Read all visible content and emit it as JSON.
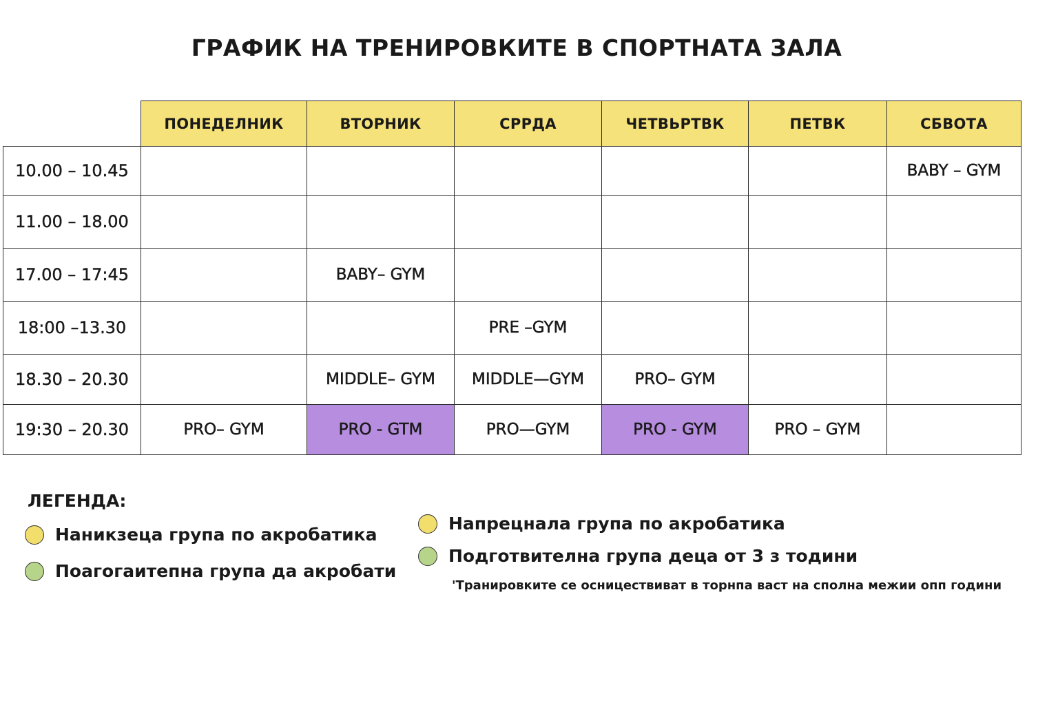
{
  "title": "ГРАФИК НА ТРЕНИРОВКИТЕ В СПОРТНАТА ЗАЛА",
  "schedule": {
    "days": [
      "ПОНЕДЕЛНИК",
      "ВТОРНИК",
      "СРРДА",
      "ЧЕТВЬРТВК",
      "ПЕТВК",
      "СБВОТА"
    ],
    "rows": [
      {
        "time": "10.00 – 10.45",
        "cells": [
          "",
          "",
          "",
          "",
          "",
          "BABY – GYM"
        ]
      },
      {
        "time": "11.00 – 18.00",
        "cells": [
          "",
          "",
          "",
          "",
          "",
          ""
        ]
      },
      {
        "time": "17.00 – 17:45",
        "cells": [
          "",
          "BABY– GYM",
          "",
          "",
          "",
          ""
        ]
      },
      {
        "time": "18:00 –13.30",
        "cells": [
          "",
          "",
          "PRE –GYM",
          "",
          "",
          ""
        ]
      },
      {
        "time": "18.30 – 20.30",
        "cells": [
          "",
          "MIDDLE– GYM",
          "MIDDLE—GYM",
          "PRO– GYM",
          "",
          ""
        ]
      },
      {
        "time": "19:30 – 20.30",
        "cells": [
          "PRO– GYM",
          "PRO - GTM",
          "PRO—GYM",
          "PRO - GYM",
          "PRO – GYM",
          ""
        ]
      }
    ],
    "highlighted": [
      {
        "row": 5,
        "col": 1
      },
      {
        "row": 5,
        "col": 3
      }
    ],
    "colors": {
      "header": "#f6e27a",
      "highlight": "#b68ddf",
      "border": "#2b2b2b"
    }
  },
  "legend": {
    "title": "ЛЕГЕНДА:",
    "items": [
      {
        "label": "Наникзеца група по акробатика",
        "color": "#f2de6c"
      },
      {
        "label": "Поагогаитепна група да акробати",
        "color": "#b6d48a"
      },
      {
        "label": "Напрецнала група по акробатика",
        "color": "#f2de6c"
      },
      {
        "label": "Подготвителна група деца от 3 з тодини",
        "color": "#b6d48a"
      }
    ],
    "note": "'Транировките се осницествиват в торнпа васт на сполна межии опп години"
  }
}
